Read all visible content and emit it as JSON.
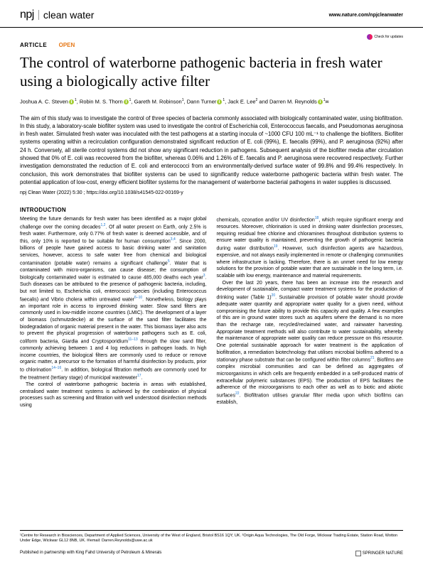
{
  "header": {
    "logo_prefix": "npj",
    "logo_name": "clean water",
    "link": "www.nature.com/npjcleanwater"
  },
  "badges": {
    "check_updates": "Check for updates"
  },
  "meta": {
    "article_type": "ARTICLE",
    "open": "OPEN"
  },
  "title": "The control of waterborne pathogenic bacteria in fresh water using a biologically active filter",
  "authors": {
    "a1_name": "Joshua A. C. Steven",
    "a1_aff": "1",
    "a2_name": "Robin M. S. Thorn",
    "a2_aff": "1",
    "a3_name": "Gareth M. Robinson",
    "a3_aff": "1",
    "a4_name": "Dann Turner",
    "a4_aff": "1",
    "a5_name": "Jack E. Lee",
    "a5_aff": "2",
    "a6_name": "Darren M. Reynolds",
    "a6_aff": "1"
  },
  "abstract": "The aim of this study was to investigate the control of three species of bacteria commonly associated with biologically contaminated water, using biofiltration. In this study, a laboratory-scale biofilter system was used to investigate the control of Escherichia coli, Enterococcus faecalis, and Pseudomonas aeruginosa in fresh water. Simulated fresh water was inoculated with the test pathogens at a starting inocula of ~1000 CFU 100 mL⁻¹ to challenge the biofilters. Biofilter systems operating within a recirculation configuration demonstrated significant reduction of E. coli (99%), E. faecalis (99%), and P. aeruginosa (92%) after 24 h. Conversely, all sterile control systems did not show any significant reduction in pathogens. Subsequent analysis of the biofilter media after circulation showed that 0% of E. coli was recovered from the biofilter, whereas 0.06% and 1.26% of E. faecalis and P. aeruginosa were recovered respectively. Further investigation demonstrated the reduction of E. coli and enterococci from an environmentally-derived surface water of 99.8% and 99.4% respectively. In conclusion, this work demonstrates that biofilter systems can be used to significantly reduce waterborne pathogenic bacteria within fresh water. The potential application of low-cost, energy efficient biofilter systems for the management of waterborne bacterial pathogens in water supplies is discussed.",
  "citation": "npj Clean Water (2022) 5:30 ; https://doi.org/10.1038/s41545-022-00169-y",
  "intro_heading": "INTRODUCTION",
  "body": {
    "col1_p1": "Meeting the future demands for fresh water has been identified as a major global challenge over the coming decades",
    "col1_p1b": ". Of all water present on Earth, only 2.5% is fresh water. Furthermore, only 0.77% of fresh water is deemed accessible, and of this, only 10% is reported to be suitable for human consumption",
    "col1_p1c": ". Since 2000, billions of people have gained access to basic drinking water and sanitation services, however, access to safe water free from chemical and biological contamination (potable water) remains a significant challenge",
    "col1_p1d": ". Water that is contaminated with micro-organisms, can cause disease; the consumption of biologically contaminated water is estimated to cause 485,000 deaths each year",
    "col1_p1e": ". Such diseases can be attributed to the presence of pathogenic bacteria, including, but not limited to, Escherichia coli, enterococci species (including Enterococcus faecalis) and Vibrio cholera within untreated water",
    "col1_p1f": ". Nonetheless, biology plays an important role in access to improved drinking water. Slow sand filters are commonly used in low-middle income countries (LMIC). The development of a layer of biomass (schmutzdecke) at the surface of the sand filter facilitates the biodegradation of organic material present in the water. This biomass layer also acts to prevent the physical progression of waterborne pathogens such as E. coli, coliform bacteria, Giardia and Cryptosporidium",
    "col1_p1g": " through the slow sand filter, commonly achieving between 1 and 4 log reductions in pathogen loads. In high income countries, the biological filters are commonly used to reduce or remove organic matter, a precursor to the formation of harmful disinfection by products, prior to chlorination",
    "col1_p1h": ". In addition, biological filtration methods are commonly used for the treatment (tertiary stage) of municipal wastewater",
    "col1_p1i": ".",
    "col1_p2": "The control of waterborne pathogenic bacteria in areas with established, centralised water treatment systems is achieved by the combination of physical processes such as screening and filtration with well understood disinfection methods using",
    "col2_p1": "chemicals, ozonation and/or UV disinfection",
    "col2_p1b": ", which require significant energy and resources. Moreover, chlorination is used in drinking water disinfection processes, requiring residual free chlorine and chloramines throughout distribution systems to ensure water quality is maintained, preventing the growth of pathogenic bacteria during water distribution",
    "col2_p1c": ". However, such disinfection agents are hazardous, expensive, and not always easily implemented in remote or challenging communities where infrastructure is lacking. Therefore, there is an unmet need for low energy solutions for the provision of potable water that are sustainable in the long term, i.e. scalable with low energy, maintenance and material requirements.",
    "col2_p2": "Over the last 20 years, there has been an increase into the research and development of sustainable, compact water treatment systems for the production of drinking water (Table 1)",
    "col2_p2b": ". Sustainable provision of potable water should provide adequate water quantity and appropriate water quality for a given need, without compromising the future ability to provide this capacity and quality. A few examples of this are in ground water stores such as aquifers where the demand is no more than the recharge rate, recycled/reclaimed water, and rainwater harvesting. Appropriate treatment methods will also contribute to water sustainability, whereby the maintenance of appropriate water quality can reduce pressure on this resource. One potential sustainable approach for water treatment is the application of biofiltration, a remediation biotechnology that utilises microbial biofilms adhered to a stationary phase substrate that can be configured within filter columns",
    "col2_p2c": ". Biofilms are complex microbial communities and can be defined as aggregates of microorganisms in which cells are frequently embedded in a self-produced matrix of extracellular polymeric substances (EPS). The production of EPS facilitates the adherence of the microorganisms to each other as well as to biotic and abiotic surfaces",
    "col2_p2d": ". Biofiltration utilises granular filter media upon which biofilms can establish,"
  },
  "refs": {
    "r1": "1,2",
    "r2": "3,4",
    "r3": "5",
    "r4": "3",
    "r5": "6–10",
    "r6": "11–13",
    "r7": "14–16",
    "r8": "17",
    "r9": "18",
    "r10": "19",
    "r11": "20",
    "r12": "21",
    "r13": "22"
  },
  "affiliations": "¹Centre for Research in Biosciences, Department of Applied Sciences, University of the West of England, Bristol BS16 1QY, UK. ²Origin Aqua Technologies, The Old Forge, Wickwar Trading Estate, Station Road, Wotton Under Edge, Wickwar GL12 8NB, UK. ✉email: Darren.Reynolds@uwe.ac.uk",
  "footer": {
    "left": "Published in partnership with King Fahd University of Petroleum & Minerals",
    "right": "SPRINGER NATURE"
  }
}
